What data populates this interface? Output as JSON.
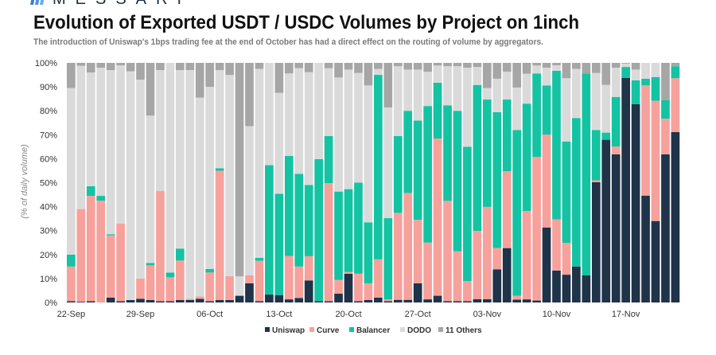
{
  "brand": "MESSARI",
  "chart_data": {
    "type": "bar",
    "stacked": true,
    "normalized": true,
    "title": "Evolution of Exported USDT / USDC Volumes by Project on 1inch",
    "subtitle": "The introduction of Uniswap's 1bps trading fee at the end of October has had a direct effect on the routing of volume by aggregators.",
    "xlabel": "",
    "ylabel": "(% of daily volume)",
    "ylim": [
      0,
      100
    ],
    "yticks": [
      "0%",
      "10%",
      "20%",
      "30%",
      "40%",
      "50%",
      "60%",
      "70%",
      "80%",
      "90%",
      "100%"
    ],
    "xtick_labels": [
      "22-Sep",
      "29-Sep",
      "06-Oct",
      "13-Oct",
      "20-Oct",
      "27-Oct",
      "03-Nov",
      "10-Nov",
      "17-Nov"
    ],
    "grid": false,
    "legend_position": "bottom",
    "categories": [
      "22-Sep",
      "23-Sep",
      "24-Sep",
      "25-Sep",
      "26-Sep",
      "27-Sep",
      "28-Sep",
      "29-Sep",
      "30-Sep",
      "01-Oct",
      "02-Oct",
      "03-Oct",
      "04-Oct",
      "05-Oct",
      "06-Oct",
      "07-Oct",
      "08-Oct",
      "09-Oct",
      "10-Oct",
      "11-Oct",
      "12-Oct",
      "13-Oct",
      "14-Oct",
      "15-Oct",
      "16-Oct",
      "17-Oct",
      "18-Oct",
      "19-Oct",
      "20-Oct",
      "21-Oct",
      "22-Oct",
      "23-Oct",
      "24-Oct",
      "25-Oct",
      "26-Oct",
      "27-Oct",
      "28-Oct",
      "29-Oct",
      "30-Oct",
      "31-Oct",
      "01-Nov",
      "02-Nov",
      "03-Nov",
      "04-Nov",
      "05-Nov",
      "06-Nov",
      "07-Nov",
      "08-Nov",
      "09-Nov",
      "10-Nov",
      "11-Nov",
      "12-Nov",
      "13-Nov",
      "14-Nov",
      "15-Nov",
      "16-Nov",
      "17-Nov",
      "18-Nov",
      "19-Nov",
      "20-Nov",
      "21-Nov",
      "22-Nov"
    ],
    "series": [
      {
        "name": "Uniswap",
        "color": "#1f3349",
        "values": [
          0.5,
          0.3,
          0.5,
          0,
          2,
          0.5,
          1,
          1.5,
          1,
          0.5,
          0.5,
          1,
          1,
          1.5,
          0.5,
          1,
          1,
          2.8,
          8,
          0.5,
          3.3,
          3.1,
          1.3,
          1.9,
          9.2,
          0.5,
          0.5,
          3.7,
          12,
          0.5,
          1,
          2,
          0.5,
          1.1,
          1.1,
          8,
          1.3,
          2.8,
          0.5,
          0.5,
          0.5,
          1.4,
          1.4,
          13.8,
          22.7,
          1.2,
          1.3,
          0.8,
          31.3,
          13.3,
          11.6,
          15,
          11.3,
          50.2,
          67.9,
          61.8,
          93.7,
          82.8,
          44.6,
          34,
          61.8,
          71.1
        ]
      },
      {
        "name": "Curve",
        "color": "#f7a19c",
        "values": [
          14.5,
          38.7,
          44,
          42.5,
          26,
          32.5,
          0,
          8.5,
          14.5,
          46,
          10,
          16.5,
          0.5,
          1,
          12,
          54,
          10,
          0,
          3.3,
          16.9,
          0,
          0,
          18.1,
          13.1,
          10.1,
          0,
          49.3,
          5.7,
          0.7,
          11.5,
          7,
          16,
          0.8,
          36.3,
          44.6,
          26.5,
          23.7,
          65.6,
          41.9,
          20.9,
          8.4,
          28.5,
          38.5,
          8.9,
          32.1,
          1.6,
          36.9,
          59.9,
          38.8,
          21.4,
          13.3,
          0,
          0,
          0.8,
          0,
          3.3,
          0,
          0,
          46,
          50.2,
          14.9,
          22.5
        ]
      },
      {
        "name": "Balancer",
        "color": "#14c3a2",
        "values": [
          5,
          0,
          4,
          2,
          0.5,
          0,
          0,
          0,
          1,
          0,
          2,
          5,
          0,
          0,
          1.5,
          1,
          0,
          0,
          0,
          1.2,
          54,
          42.3,
          41.8,
          38.7,
          29.7,
          59.3,
          19.7,
          36.9,
          34.6,
          38,
          25.4,
          77,
          33.9,
          32.1,
          34.3,
          41.4,
          57,
          23.3,
          39.9,
          58.6,
          56.1,
          60.9,
          44.8,
          56.7,
          29.9,
          69.2,
          44.8,
          34.9,
          20.5,
          62,
          42.3,
          62,
          84.2,
          21,
          3,
          20.7,
          4.6,
          9.9,
          2.8,
          9.9,
          7.8,
          5
        ]
      },
      {
        "name": "DODO",
        "color": "#dadada",
        "values": [
          69.5,
          59.8,
          47.5,
          53.5,
          68.5,
          66,
          95.5,
          83,
          61.5,
          50.5,
          87.5,
          74.5,
          95.5,
          83,
          76,
          41,
          84,
          8.1,
          62.3,
          78.9,
          42.7,
          42.1,
          34.4,
          44.1,
          47.1,
          40.2,
          28.3,
          47.6,
          49.9,
          45.8,
          57.2,
          2.5,
          46.2,
          29.1,
          17.2,
          21.3,
          14.3,
          7.2,
          16.3,
          18.6,
          33,
          7.5,
          4.8,
          14,
          11.6,
          17.7,
          12.5,
          3.3,
          7.4,
          2.3,
          26.4,
          20.5,
          0,
          23.8,
          19.9,
          12.2,
          1.4,
          4.5,
          6.6,
          5.9,
          0,
          0
        ]
      },
      {
        "name": "11 Others",
        "color": "#a6a6a6",
        "values": [
          10.5,
          1.2,
          4,
          2,
          3,
          1,
          3.5,
          7,
          22,
          3,
          0,
          3,
          3,
          14.5,
          10,
          3,
          5,
          89.1,
          26.4,
          2.5,
          0,
          12.5,
          4.4,
          2.2,
          3.9,
          0,
          2.2,
          6.1,
          2.8,
          4.2,
          9.4,
          2.5,
          18.6,
          1.4,
          2.8,
          2.8,
          3.7,
          1.1,
          1.4,
          1.4,
          2,
          1.7,
          10.5,
          6.6,
          3.7,
          10.3,
          4.5,
          1.1,
          2,
          1,
          6.4,
          2.5,
          4.5,
          4.2,
          9.2,
          2,
          0.3,
          2.8,
          0,
          0,
          15.5,
          1.4
        ]
      }
    ]
  }
}
